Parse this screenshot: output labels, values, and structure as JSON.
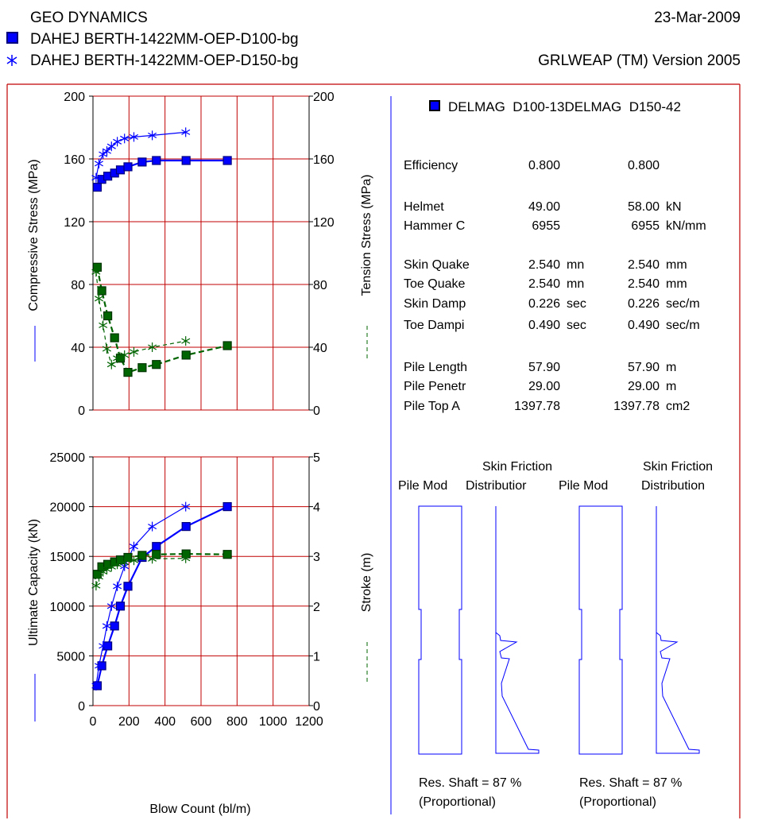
{
  "header": {
    "company": "GEO DYNAMICS",
    "date": "23-Mar-2009",
    "case1": "DAHEJ BERTH-1422MM-OEP-D100-bg",
    "case2": "DAHEJ BERTH-1422MM-OEP-D150-bg",
    "program": "GRLWEAP (TM) Version 2005"
  },
  "colors": {
    "blue": "#0000ff",
    "green": "#006400",
    "grid": "#c00000",
    "marker_dark": "#00007f"
  },
  "chart_data": [
    {
      "type": "line",
      "left_ylabel": "Compressive Stress (MPa)",
      "right_ylabel": "Tension Stress (MPa)",
      "ylim_left": [
        0,
        200
      ],
      "ylim_right": [
        0,
        200
      ],
      "y_ticks_left": [
        "0",
        "40",
        "80",
        "120",
        "160",
        "200"
      ],
      "y_ticks_right": [
        "0",
        "40",
        "80",
        "120",
        "160",
        "200"
      ],
      "xlim": [
        0,
        1200
      ],
      "grid": true,
      "series": [
        {
          "name": "DAHEJ BERTH-1422MM-OEP-D100-bg",
          "quantity": "compressive stress",
          "axis": "left",
          "color": "#0000ff",
          "marker": "square",
          "dash": false,
          "x": [
            24,
            49,
            82,
            120,
            152,
            194,
            273,
            352,
            517,
            746
          ],
          "y": [
            142,
            147,
            149,
            151,
            153,
            155,
            158,
            159,
            159,
            159
          ]
        },
        {
          "name": "DAHEJ BERTH-1422MM-OEP-D150-bg",
          "quantity": "compressive stress",
          "axis": "left",
          "color": "#0000ff",
          "marker": "asterisk",
          "dash": false,
          "x": [
            17,
            33,
            56,
            77,
            103,
            135,
            175,
            227,
            329,
            515
          ],
          "y": [
            148,
            157,
            163,
            165,
            168,
            171,
            173,
            174,
            175,
            177
          ]
        },
        {
          "name": "DAHEJ BERTH-1422MM-OEP-D100-bg",
          "quantity": "tension stress",
          "axis": "right",
          "color": "#006400",
          "marker": "square",
          "dash": true,
          "x": [
            24,
            49,
            82,
            120,
            152,
            194,
            273,
            352,
            517,
            746
          ],
          "y": [
            91,
            76,
            60,
            46,
            33,
            24,
            27,
            29,
            35,
            41
          ]
        },
        {
          "name": "DAHEJ BERTH-1422MM-OEP-D150-bg",
          "quantity": "tension stress",
          "axis": "right",
          "color": "#006400",
          "marker": "asterisk",
          "dash": true,
          "x": [
            17,
            33,
            56,
            77,
            103,
            135,
            175,
            227,
            329,
            515
          ],
          "y": [
            88,
            71,
            54,
            39,
            29,
            33,
            35,
            37,
            40,
            44
          ]
        }
      ]
    },
    {
      "type": "line",
      "left_ylabel": "Ultimate Capacity (kN)",
      "right_ylabel": "Stroke (m)",
      "xlabel": "Blow Count (bl/m)",
      "ylim_left": [
        0,
        25000
      ],
      "ylim_right": [
        0,
        5
      ],
      "y_ticks_left": [
        "0",
        "5000",
        "10000",
        "15000",
        "20000",
        "25000"
      ],
      "y_ticks_right": [
        "0",
        "1",
        "2",
        "3",
        "4",
        "5"
      ],
      "xlim": [
        0,
        1200
      ],
      "x_ticks": [
        "0",
        "200",
        "400",
        "600",
        "800",
        "1000",
        "1200"
      ],
      "grid": true,
      "series": [
        {
          "name": "DAHEJ BERTH-1422MM-OEP-D100-bg",
          "quantity": "ultimate capacity",
          "axis": "left",
          "color": "#0000ff",
          "marker": "square",
          "dash": false,
          "x": [
            24,
            49,
            82,
            120,
            152,
            194,
            273,
            352,
            517,
            746
          ],
          "y": [
            2000,
            4000,
            6000,
            8000,
            10000,
            12000,
            14900,
            16000,
            18000,
            20000
          ]
        },
        {
          "name": "DAHEJ BERTH-1422MM-OEP-D150-bg",
          "quantity": "ultimate capacity",
          "axis": "left",
          "color": "#0000ff",
          "marker": "asterisk",
          "dash": false,
          "x": [
            17,
            33,
            56,
            77,
            103,
            135,
            175,
            227,
            329,
            515
          ],
          "y": [
            2000,
            4000,
            6000,
            8000,
            10000,
            12000,
            14000,
            16000,
            18000,
            20000
          ]
        },
        {
          "name": "DAHEJ BERTH-1422MM-OEP-D100-bg",
          "quantity": "stroke",
          "axis": "right",
          "color": "#006400",
          "marker": "square",
          "dash": true,
          "x": [
            24,
            49,
            82,
            120,
            152,
            194,
            273,
            352,
            517,
            746
          ],
          "y": [
            2.64,
            2.79,
            2.84,
            2.89,
            2.93,
            2.98,
            3.02,
            3.04,
            3.05,
            3.04
          ]
        },
        {
          "name": "DAHEJ BERTH-1422MM-OEP-D150-bg",
          "quantity": "stroke",
          "axis": "right",
          "color": "#006400",
          "marker": "asterisk",
          "dash": true,
          "x": [
            17,
            33,
            56,
            77,
            103,
            135,
            175,
            227,
            329,
            515
          ],
          "y": [
            2.41,
            2.59,
            2.69,
            2.74,
            2.79,
            2.84,
            2.88,
            2.92,
            2.95,
            2.96
          ]
        }
      ]
    }
  ],
  "hammer": {
    "legend_label": "DELMAG  D100-13DELMAG  D150-42",
    "rows": [
      {
        "label": "Efficiency",
        "v1": "0.800",
        "u1": "",
        "v2": "0.800",
        "u2": ""
      },
      {
        "label": "Helmet",
        "v1": "49.00",
        "u1": "",
        "v2": "58.00",
        "u2": "kN"
      },
      {
        "label": "Hammer C",
        "v1": "6955",
        "u1": "",
        "v2": "6955",
        "u2": "kN/mm"
      },
      {
        "label": "Skin Quake",
        "v1": "2.540",
        "u1": "mn",
        "v2": "2.540",
        "u2": "mm"
      },
      {
        "label": "Toe Quake",
        "v1": "2.540",
        "u1": "mn",
        "v2": "2.540",
        "u2": "mm"
      },
      {
        "label": "Skin Damp",
        "v1": "0.226",
        "u1": "sec",
        "v2": "0.226",
        "u2": "sec/m"
      },
      {
        "label": "Toe Dampi",
        "v1": "0.490",
        "u1": "sec",
        "v2": "0.490",
        "u2": "sec/m"
      },
      {
        "label": "Pile Length",
        "v1": "57.90",
        "u1": "",
        "v2": "57.90",
        "u2": "m"
      },
      {
        "label": "Pile Penetr",
        "v1": "29.00",
        "u1": "",
        "v2": "29.00",
        "u2": "m"
      },
      {
        "label": "Pile Top A",
        "v1": "1397.78",
        "u1": "",
        "v2": "1397.78",
        "u2": "cm2"
      }
    ]
  },
  "pile_models": {
    "skin_friction_label": "Skin Friction",
    "pile_model_label": "Pile Mod",
    "distribution_label": "Distributior",
    "distribution_label2": "Distribution",
    "res_shaft_1": "Res. Shaft = 87 %",
    "res_shaft_2": "Res. Shaft = 87 %",
    "proportional_1": "(Proportional)",
    "proportional_2": "(Proportional)"
  }
}
